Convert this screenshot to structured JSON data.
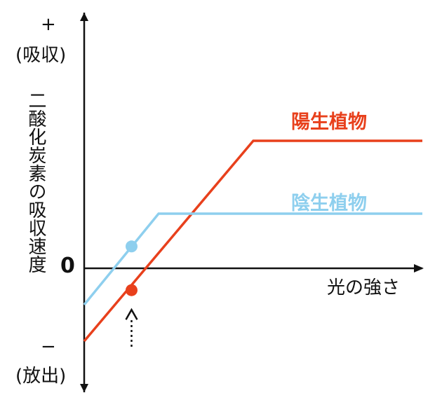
{
  "chart_data": {
    "type": "line",
    "title": "",
    "xlabel": "光の強さ",
    "ylabel": "二酸化炭素の吸収速度",
    "y_top_marker": "+",
    "y_top_note": "(吸収)",
    "y_bottom_marker": "−",
    "y_bottom_note": "(放出)",
    "zero_label": "0",
    "xlim": [
      0,
      100
    ],
    "ylim": [
      -9,
      12
    ],
    "grid": false,
    "series": [
      {
        "name": "陽生植物",
        "color": "#e8401c",
        "x": [
          0,
          50,
          100
        ],
        "y": [
          -4,
          7,
          7
        ]
      },
      {
        "name": "陰生植物",
        "color": "#8ecfee",
        "x": [
          0,
          22,
          100
        ],
        "y": [
          -2,
          3,
          3
        ]
      }
    ],
    "markers": [
      {
        "series": "陰生植物",
        "x": 14,
        "y": 1.2,
        "color": "#8ecfee"
      },
      {
        "series": "陽生植物",
        "x": 14,
        "y": -1.2,
        "color": "#e8401c"
      }
    ],
    "annotation": {
      "type": "dotted-arrow",
      "x": 14,
      "points_to": "陽生植物"
    }
  }
}
